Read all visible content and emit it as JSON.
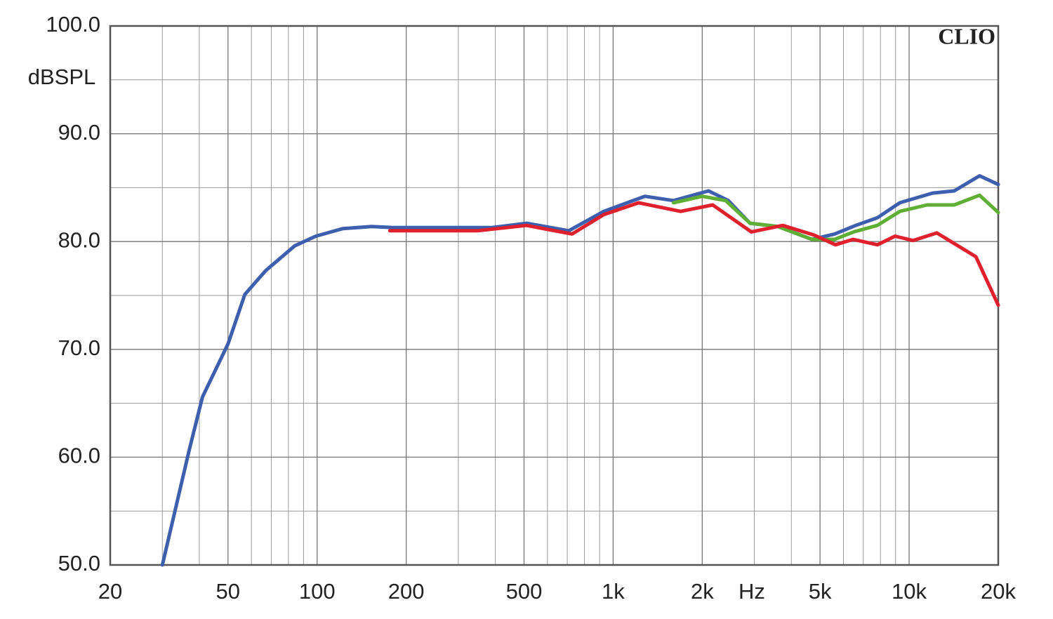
{
  "chart_data": {
    "type": "line",
    "xlabel": "Hz",
    "ylabel": "dBSPL",
    "watermark": "CLIO",
    "xscale": "log",
    "grid": true,
    "xlim": [
      20,
      20000
    ],
    "ylim": [
      50,
      100
    ],
    "xticks": [
      20,
      50,
      100,
      200,
      500,
      {
        "value": 1000,
        "label": "1k"
      },
      {
        "value": 2000,
        "label": "2k"
      },
      {
        "value": 5000,
        "label": "5k"
      },
      {
        "value": 10000,
        "label": "10k"
      },
      {
        "value": 20000,
        "label": "20k"
      }
    ],
    "xminorticks": [
      30,
      40,
      60,
      70,
      80,
      90,
      300,
      400,
      600,
      700,
      800,
      900,
      3000,
      4000,
      6000,
      7000,
      8000,
      9000
    ],
    "yticks": [
      {
        "value": 50,
        "label": "50.0"
      },
      {
        "value": 60,
        "label": "60.0"
      },
      {
        "value": 70,
        "label": "70.0"
      },
      {
        "value": 80,
        "label": "80.0"
      },
      {
        "value": 90,
        "label": "90.0"
      },
      {
        "value": 100,
        "label": "100.0"
      }
    ],
    "yminorticks": [
      55,
      65,
      75,
      85,
      95
    ],
    "series": [
      {
        "color": "#3d5fae",
        "x": [
          30,
          37,
          41,
          50,
          57,
          67,
          84,
          99,
          122,
          153,
          180,
          390,
          511,
          708,
          930,
          1280,
          1600,
          2100,
          2450,
          2900,
          3600,
          4700,
          5600,
          6600,
          7800,
          9300,
          12000,
          14200,
          17300,
          20000
        ],
        "values": [
          50,
          60.7,
          65.6,
          70.5,
          75.1,
          77.3,
          79.6,
          80.5,
          81.2,
          81.4,
          81.3,
          81.3,
          81.7,
          81.0,
          82.8,
          84.2,
          83.8,
          84.7,
          83.8,
          81.7,
          81.4,
          80.2,
          80.7,
          81.5,
          82.2,
          83.6,
          84.5,
          84.7,
          86.1,
          85.3
        ]
      },
      {
        "color": "#5fae35",
        "x": [
          1600,
          2000,
          2400,
          2900,
          3600,
          4700,
          5600,
          6500,
          7800,
          9300,
          11500,
          14200,
          17300,
          20000
        ],
        "values": [
          83.6,
          84.2,
          83.8,
          81.7,
          81.4,
          80.2,
          80.2,
          80.9,
          81.5,
          82.8,
          83.4,
          83.4,
          84.3,
          82.7
        ]
      },
      {
        "color": "#e0202c",
        "x": [
          176,
          348,
          510,
          727,
          930,
          1220,
          1690,
          2170,
          2930,
          3740,
          4780,
          5640,
          6460,
          7820,
          8960,
          10300,
          12400,
          16800,
          20000
        ],
        "values": [
          81.0,
          81.0,
          81.5,
          80.7,
          82.5,
          83.6,
          82.8,
          83.4,
          80.9,
          81.5,
          80.6,
          79.7,
          80.2,
          79.7,
          80.5,
          80.1,
          80.8,
          78.6,
          74.1
        ]
      }
    ]
  }
}
